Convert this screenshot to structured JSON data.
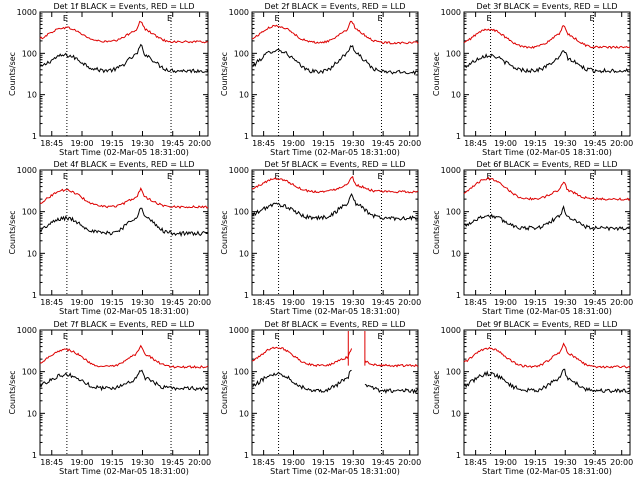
{
  "figure": {
    "background": "#ffffff",
    "events_color": "#000000",
    "lld_color": "#dd0000"
  },
  "chart_data": [
    {
      "type": "line",
      "title": "Det 1f BLACK = Events, RED = LLD",
      "ylabel": "Counts/sec",
      "xlabel": "Start Time (02-Mar-05 18:31:00)",
      "x_ticks": [
        "18:45",
        "19:00",
        "19:15",
        "19:30",
        "19:45",
        "20:00"
      ],
      "y_ticks": [
        "1",
        "10",
        "100",
        "1000"
      ],
      "yscale": "log",
      "ylim": [
        1,
        1000
      ],
      "markers": [
        "E",
        "E"
      ],
      "series": [
        {
          "name": "Events",
          "peak1": 90,
          "peak2": 150,
          "base": 38,
          "gap": false
        },
        {
          "name": "LLD",
          "peak1": 420,
          "peak2": 600,
          "base": 190,
          "gap": false
        }
      ]
    },
    {
      "type": "line",
      "title": "Det 2f BLACK = Events, RED = LLD",
      "ylabel": "Counts/sec",
      "xlabel": "Start Time (02-Mar-05 18:31:00)",
      "x_ticks": [
        "18:45",
        "19:00",
        "19:15",
        "19:30",
        "19:45",
        "20:00"
      ],
      "y_ticks": [
        "1",
        "10",
        "100",
        "1000"
      ],
      "yscale": "log",
      "ylim": [
        1,
        1000
      ],
      "markers": [
        "E",
        "E"
      ],
      "series": [
        {
          "name": "Events",
          "peak1": 120,
          "peak2": 160,
          "base": 35,
          "gap": false
        },
        {
          "name": "LLD",
          "peak1": 460,
          "peak2": 600,
          "base": 180,
          "gap": false
        }
      ]
    },
    {
      "type": "line",
      "title": "Det 3f BLACK = Events, RED = LLD",
      "ylabel": "Counts/sec",
      "xlabel": "Start Time (02-Mar-05 18:31:00)",
      "x_ticks": [
        "18:45",
        "19:00",
        "19:15",
        "19:30",
        "19:45",
        "20:00"
      ],
      "y_ticks": [
        "1",
        "10",
        "100",
        "1000"
      ],
      "yscale": "log",
      "ylim": [
        1,
        1000
      ],
      "markers": [
        "E",
        "E"
      ],
      "series": [
        {
          "name": "Events",
          "peak1": 90,
          "peak2": 120,
          "base": 38,
          "gap": false
        },
        {
          "name": "LLD",
          "peak1": 380,
          "peak2": 460,
          "base": 140,
          "gap": false
        }
      ]
    },
    {
      "type": "line",
      "title": "Det 4f BLACK = Events, RED = LLD",
      "ylabel": "Counts/sec",
      "xlabel": "Start Time (02-Mar-05 18:31:00)",
      "x_ticks": [
        "18:45",
        "19:00",
        "19:15",
        "19:30",
        "19:45",
        "20:00"
      ],
      "y_ticks": [
        "1",
        "10",
        "100",
        "1000"
      ],
      "yscale": "log",
      "ylim": [
        1,
        1000
      ],
      "markers": [
        "E",
        "E"
      ],
      "series": [
        {
          "name": "Events",
          "peak1": 70,
          "peak2": 120,
          "base": 30,
          "gap": false
        },
        {
          "name": "LLD",
          "peak1": 330,
          "peak2": 350,
          "base": 130,
          "gap": false
        }
      ]
    },
    {
      "type": "line",
      "title": "Det 5f BLACK = Events, RED = LLD",
      "ylabel": "Counts/sec",
      "xlabel": "Start Time (02-Mar-05 18:31:00)",
      "x_ticks": [
        "18:45",
        "19:00",
        "19:15",
        "19:30",
        "19:45",
        "20:00"
      ],
      "y_ticks": [
        "1",
        "10",
        "100",
        "1000"
      ],
      "yscale": "log",
      "ylim": [
        1,
        1000
      ],
      "markers": [
        "E",
        "E"
      ],
      "series": [
        {
          "name": "Events",
          "peak1": 150,
          "peak2": 250,
          "base": 70,
          "gap": false
        },
        {
          "name": "LLD",
          "peak1": 620,
          "peak2": 700,
          "base": 300,
          "gap": false
        }
      ]
    },
    {
      "type": "line",
      "title": "Det 6f BLACK = Events, RED = LLD",
      "ylabel": "Counts/sec",
      "xlabel": "Start Time (02-Mar-05 18:31:00)",
      "x_ticks": [
        "18:45",
        "19:00",
        "19:15",
        "19:30",
        "19:45",
        "20:00"
      ],
      "y_ticks": [
        "1",
        "10",
        "100",
        "1000"
      ],
      "yscale": "log",
      "ylim": [
        1,
        1000
      ],
      "markers": [
        "E",
        "E"
      ],
      "series": [
        {
          "name": "Events",
          "peak1": 80,
          "peak2": 120,
          "base": 40,
          "gap": false
        },
        {
          "name": "LLD",
          "peak1": 620,
          "peak2": 520,
          "base": 200,
          "gap": false
        }
      ]
    },
    {
      "type": "line",
      "title": "Det 7f BLACK = Events, RED = LLD",
      "ylabel": "Counts/sec",
      "xlabel": "Start Time (02-Mar-05 18:31:00)",
      "x_ticks": [
        "18:45",
        "19:00",
        "19:15",
        "19:30",
        "19:45",
        "20:00"
      ],
      "y_ticks": [
        "1",
        "10",
        "100",
        "1000"
      ],
      "yscale": "log",
      "ylim": [
        1,
        1000
      ],
      "markers": [
        "E",
        "E"
      ],
      "series": [
        {
          "name": "Events",
          "peak1": 85,
          "peak2": 110,
          "base": 40,
          "gap": false
        },
        {
          "name": "LLD",
          "peak1": 340,
          "peak2": 420,
          "base": 130,
          "gap": false
        }
      ]
    },
    {
      "type": "line",
      "title": "Det 8f BLACK = Events, RED = LLD",
      "ylabel": "Counts/sec",
      "xlabel": "Start Time (02-Mar-05 18:31:00)",
      "x_ticks": [
        "18:45",
        "19:00",
        "19:15",
        "19:30",
        "19:45",
        "20:00"
      ],
      "y_ticks": [
        "1",
        "10",
        "100",
        "1000"
      ],
      "yscale": "log",
      "ylim": [
        1,
        1000
      ],
      "markers": [
        "E",
        "E"
      ],
      "series": [
        {
          "name": "Events",
          "peak1": 90,
          "peak2": 110,
          "base": 35,
          "gap": true
        },
        {
          "name": "LLD",
          "peak1": 380,
          "peak2": 350,
          "base": 140,
          "gap": true
        }
      ]
    },
    {
      "type": "line",
      "title": "Det 9f BLACK = Events, RED = LLD",
      "ylabel": "Counts/sec",
      "xlabel": "Start Time (02-Mar-05 18:31:00)",
      "x_ticks": [
        "18:45",
        "19:00",
        "19:15",
        "19:30",
        "19:45",
        "20:00"
      ],
      "y_ticks": [
        "1",
        "10",
        "100",
        "1000"
      ],
      "yscale": "log",
      "ylim": [
        1,
        1000
      ],
      "markers": [
        "E",
        "E"
      ],
      "series": [
        {
          "name": "Events",
          "peak1": 90,
          "peak2": 110,
          "base": 35,
          "gap": false
        },
        {
          "name": "LLD",
          "peak1": 360,
          "peak2": 450,
          "base": 130,
          "gap": false
        }
      ]
    }
  ]
}
